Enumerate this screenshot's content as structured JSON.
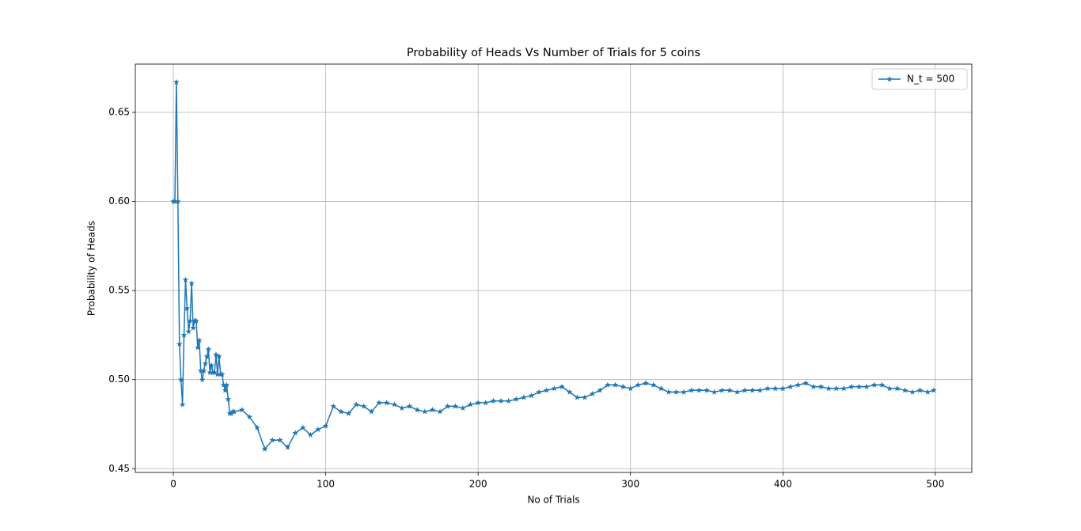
{
  "chart_data": {
    "type": "line",
    "title": "Probability of Heads Vs Number of Trials for 5 coins",
    "xlabel": "No of Trials",
    "ylabel": "Probability of Heads",
    "x": [
      0,
      1,
      2,
      3,
      4,
      5,
      6,
      7,
      8,
      9,
      10,
      11,
      12,
      13,
      14,
      15,
      16,
      17,
      18,
      19,
      20,
      21,
      22,
      23,
      24,
      25,
      26,
      27,
      28,
      29,
      30,
      31,
      32,
      33,
      34,
      35,
      36,
      37,
      38,
      39,
      40,
      45,
      50,
      55,
      60,
      65,
      70,
      75,
      80,
      85,
      90,
      95,
      100,
      105,
      110,
      115,
      120,
      125,
      130,
      135,
      140,
      145,
      150,
      155,
      160,
      165,
      170,
      175,
      180,
      185,
      190,
      195,
      200,
      205,
      210,
      215,
      220,
      225,
      230,
      235,
      240,
      245,
      250,
      255,
      260,
      265,
      270,
      275,
      280,
      285,
      290,
      295,
      300,
      305,
      310,
      315,
      320,
      325,
      330,
      335,
      340,
      345,
      350,
      355,
      360,
      365,
      370,
      375,
      380,
      385,
      390,
      395,
      400,
      405,
      410,
      415,
      420,
      425,
      430,
      435,
      440,
      445,
      450,
      455,
      460,
      465,
      470,
      475,
      480,
      485,
      490,
      495,
      499
    ],
    "series": [
      {
        "name": "N_t = 500",
        "color": "#1f77b4",
        "marker": "star",
        "values": [
          0.6,
          0.6,
          0.667,
          0.6,
          0.52,
          0.5,
          0.486,
          0.525,
          0.556,
          0.54,
          0.527,
          0.533,
          0.554,
          0.529,
          0.533,
          0.533,
          0.518,
          0.522,
          0.505,
          0.5,
          0.505,
          0.509,
          0.513,
          0.517,
          0.504,
          0.508,
          0.504,
          0.504,
          0.514,
          0.503,
          0.513,
          0.503,
          0.503,
          0.497,
          0.494,
          0.497,
          0.489,
          0.481,
          0.481,
          0.482,
          0.482,
          0.483,
          0.479,
          0.473,
          0.461,
          0.466,
          0.466,
          0.462,
          0.47,
          0.473,
          0.469,
          0.472,
          0.474,
          0.485,
          0.482,
          0.481,
          0.486,
          0.485,
          0.482,
          0.487,
          0.487,
          0.486,
          0.484,
          0.485,
          0.483,
          0.482,
          0.483,
          0.482,
          0.485,
          0.485,
          0.484,
          0.486,
          0.487,
          0.487,
          0.488,
          0.488,
          0.488,
          0.489,
          0.49,
          0.491,
          0.493,
          0.494,
          0.495,
          0.496,
          0.493,
          0.49,
          0.49,
          0.492,
          0.494,
          0.497,
          0.497,
          0.496,
          0.495,
          0.497,
          0.498,
          0.497,
          0.495,
          0.493,
          0.493,
          0.493,
          0.494,
          0.494,
          0.494,
          0.493,
          0.494,
          0.494,
          0.493,
          0.494,
          0.494,
          0.494,
          0.495,
          0.495,
          0.495,
          0.496,
          0.497,
          0.498,
          0.496,
          0.496,
          0.495,
          0.495,
          0.495,
          0.496,
          0.496,
          0.496,
          0.497,
          0.497,
          0.495,
          0.495,
          0.494,
          0.493,
          0.494,
          0.493,
          0.494
        ]
      }
    ],
    "xlim": [
      -24.95,
      523.95
    ],
    "xticks": [
      0,
      100,
      200,
      300,
      400,
      500
    ],
    "ylim": [
      0.4479,
      0.6771
    ],
    "yticks": [
      0.45,
      {
        "value": 0.5,
        "label": "0.50"
      },
      0.55,
      {
        "value": 0.6,
        "label": "0.60"
      },
      0.65
    ],
    "grid": true,
    "legend": "upper right"
  }
}
